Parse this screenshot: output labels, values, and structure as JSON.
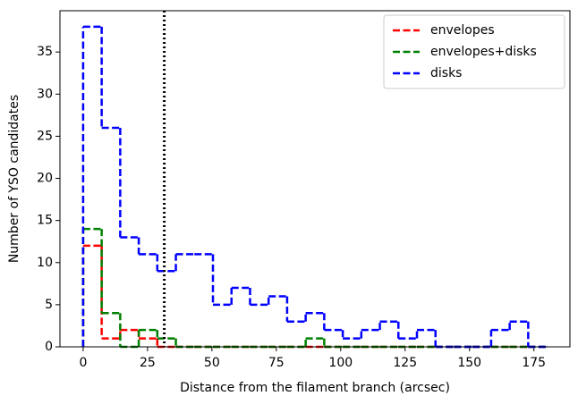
{
  "chart_data": {
    "type": "histogram",
    "xlabel": "Distance from the filament branch (arcsec)",
    "ylabel": "Number of YSO candidates",
    "bins": [
      0,
      7.2,
      14.4,
      21.6,
      28.8,
      36,
      43.2,
      50.4,
      57.6,
      64.8,
      72,
      79.2,
      86.4,
      93.6,
      100.8,
      108,
      115.2,
      122.4,
      129.6,
      136.8,
      144,
      151.2,
      158.4,
      165.6,
      172.8,
      180
    ],
    "series": [
      {
        "name": "envelopes",
        "color": "#ff0000",
        "values": [
          12,
          1,
          2,
          1,
          0,
          0,
          0,
          0,
          0,
          0,
          0,
          0,
          0,
          0,
          0,
          0,
          0,
          0,
          0,
          0,
          0,
          0,
          0,
          0,
          0
        ]
      },
      {
        "name": "envelopes+disks",
        "color": "#008000",
        "values": [
          14,
          4,
          0,
          2,
          1,
          0,
          0,
          0,
          0,
          0,
          0,
          0,
          1,
          0,
          0,
          0,
          0,
          0,
          0,
          0,
          0,
          0,
          0,
          0,
          0
        ]
      },
      {
        "name": "disks",
        "color": "#0000ff",
        "values": [
          38,
          26,
          13,
          11,
          9,
          11,
          11,
          5,
          7,
          5,
          6,
          3,
          4,
          2,
          1,
          2,
          3,
          1,
          2,
          0,
          0,
          0,
          2,
          3,
          0
        ]
      }
    ],
    "vline": 31.5,
    "xlim": [
      -9,
      189
    ],
    "xticks": [
      0,
      25,
      50,
      75,
      100,
      125,
      150,
      175
    ],
    "ylim": [
      0,
      39.9
    ],
    "yticks": [
      0,
      5,
      10,
      15,
      20,
      25,
      30,
      35
    ],
    "legend": "upper right"
  }
}
